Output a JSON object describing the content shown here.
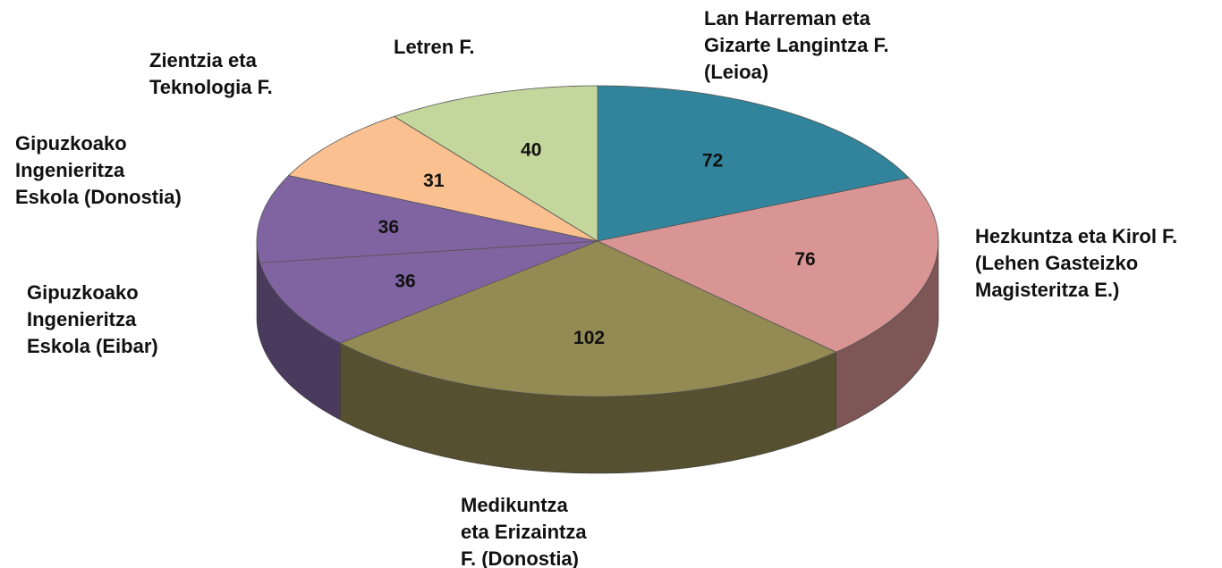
{
  "chart_data": {
    "type": "pie3d",
    "categories": [
      [
        "Lan Harreman eta",
        "Gizarte Langintza F.",
        "(Leioa)"
      ],
      [
        "Hezkuntza eta Kirol F.",
        "(Lehen Gasteizko",
        "Magisteritza E.)"
      ],
      [
        "Medikuntza",
        "eta Erizaintza",
        "F. (Donostia)"
      ],
      [
        "Gipuzkoako",
        "Ingenieritza",
        "Eskola (Eibar)"
      ],
      [
        "Gipuzkoako",
        "Ingenieritza",
        "Eskola (Donostia)"
      ],
      [
        "Zientzia eta",
        "Teknologia F."
      ],
      [
        "Letren F."
      ]
    ],
    "values": [
      72,
      76,
      102,
      36,
      36,
      31,
      40
    ],
    "colors": [
      "#31849b",
      "#d99594",
      "#948a54",
      "#8064a2",
      "#8064a2",
      "#fac090",
      "#c3d69b"
    ]
  }
}
